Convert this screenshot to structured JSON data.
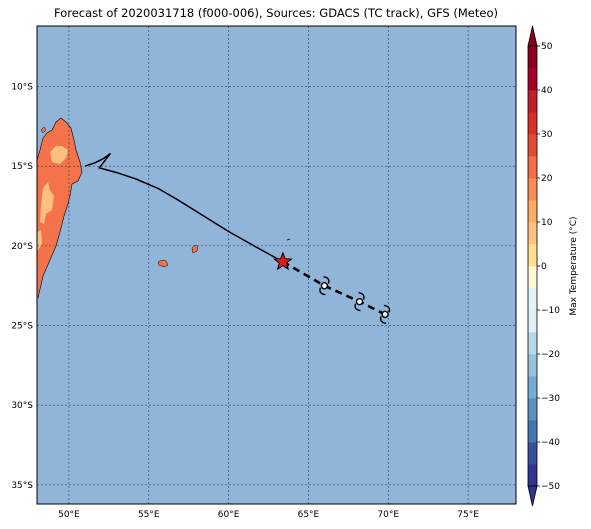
{
  "title": "Forecast of 2020031718 (f000-006), Sources: GDACS (TC track), GFS (Meteo)",
  "colors": {
    "ocean": "#91b4d9",
    "land_warm": "#f4734a",
    "land_cool": "#fdbf7f",
    "track": "#000000",
    "current_position": "#e31a1c"
  },
  "map": {
    "lon_labels": [
      "50°E",
      "55°E",
      "60°E",
      "65°E",
      "70°E",
      "75°E"
    ],
    "lat_labels": [
      "10°S",
      "15°S",
      "20°S",
      "25°S",
      "30°S",
      "35°S"
    ],
    "lon_values": [
      50,
      55,
      60,
      65,
      70,
      75
    ],
    "lat_values": [
      -10,
      -15,
      -20,
      -25,
      -30,
      -35
    ],
    "extent": {
      "lon_min": 48,
      "lon_max": 78,
      "lat_min": -36.2,
      "lat_max": -6.2
    },
    "gridlines": true
  },
  "track": {
    "past": [
      [
        51.0,
        -15.0
      ],
      [
        51.6,
        -14.8
      ],
      [
        52.2,
        -14.5
      ],
      [
        52.6,
        -14.2
      ],
      [
        51.9,
        -15.1
      ],
      [
        53.0,
        -15.4
      ],
      [
        54.2,
        -15.8
      ],
      [
        55.6,
        -16.4
      ],
      [
        56.8,
        -17.1
      ],
      [
        58.4,
        -18.1
      ],
      [
        60.0,
        -19.1
      ],
      [
        61.6,
        -20.0
      ],
      [
        63.4,
        -21.0
      ]
    ],
    "forecast": [
      [
        63.4,
        -21.0
      ],
      [
        66.0,
        -22.5
      ],
      [
        68.2,
        -23.5
      ],
      [
        69.8,
        -24.3
      ]
    ],
    "current_position": [
      63.4,
      -21.0
    ],
    "forecast_symbols": [
      [
        66.0,
        -22.5
      ],
      [
        68.2,
        -23.5
      ],
      [
        69.8,
        -24.3
      ]
    ]
  },
  "colorbar": {
    "label": "Max Temperature (°C)",
    "ticks": [
      "50",
      "40",
      "30",
      "20",
      "10",
      "0",
      "−10",
      "−20",
      "−30",
      "−40",
      "−50"
    ],
    "tick_values": [
      50,
      40,
      30,
      20,
      10,
      0,
      -10,
      -20,
      -30,
      -40,
      -50
    ],
    "range": [
      -50,
      50
    ],
    "extend": "both",
    "band_colors": [
      "#313695",
      "#3a4ea0",
      "#4575b4",
      "#5f90c2",
      "#74add1",
      "#97c2dd",
      "#b6d9ea",
      "#ddf1f7",
      "#e0f3f8",
      "#fff9d6",
      "#fee090",
      "#fdc37f",
      "#fdae61",
      "#f88c52",
      "#f46d43",
      "#e34a33",
      "#d73027",
      "#c21d2a",
      "#a50026",
      "#8b0021"
    ]
  }
}
